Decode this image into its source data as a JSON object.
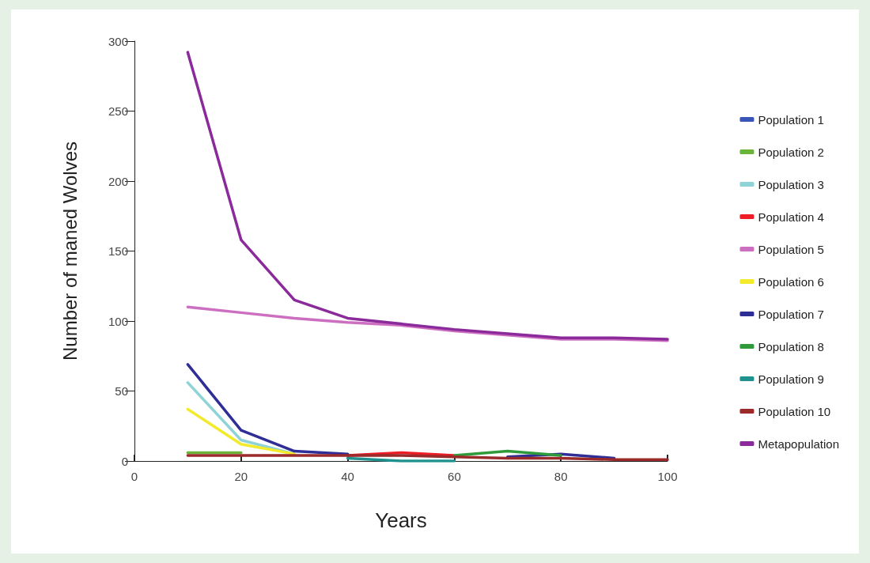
{
  "chart_data": {
    "type": "line",
    "xlabel": "Years",
    "ylabel": "Number of maned Wolves",
    "x": [
      10,
      20,
      30,
      40,
      50,
      60,
      70,
      80,
      90,
      100
    ],
    "xlim": [
      0,
      100
    ],
    "xticks": [
      0,
      20,
      40,
      60,
      80,
      100
    ],
    "ylim": [
      0,
      300
    ],
    "yticks": [
      0,
      50,
      100,
      150,
      200,
      250,
      300
    ],
    "grid": false,
    "legend": "right",
    "marker": "none",
    "line_style": "solid",
    "series": [
      {
        "name": "Population 1",
        "color": "#3a55b8",
        "values": [
          null,
          null,
          null,
          null,
          null,
          null,
          null,
          null,
          null,
          null
        ]
      },
      {
        "name": "Population 2",
        "color": "#6ab43a",
        "values": [
          6,
          6,
          null,
          null,
          null,
          null,
          null,
          null,
          null,
          null
        ]
      },
      {
        "name": "Population 3",
        "color": "#8fd3d6",
        "values": [
          56,
          15,
          5,
          null,
          null,
          null,
          null,
          null,
          null,
          null
        ]
      },
      {
        "name": "Population 4",
        "color": "#ee1c24",
        "values": [
          null,
          null,
          null,
          4,
          6,
          4,
          null,
          null,
          null,
          null
        ]
      },
      {
        "name": "Population 5",
        "color": "#cc6fc0",
        "values": [
          110,
          106,
          102,
          99,
          97,
          93,
          90,
          87,
          87,
          86
        ]
      },
      {
        "name": "Population 6",
        "color": "#f2ea2a",
        "values": [
          37,
          12,
          5,
          null,
          null,
          null,
          null,
          null,
          null,
          null
        ]
      },
      {
        "name": "Population 7",
        "color": "#2e2e96",
        "values": [
          69,
          22,
          7,
          5,
          null,
          null,
          3,
          5,
          2,
          null
        ]
      },
      {
        "name": "Population 8",
        "color": "#2f9a3a",
        "values": [
          null,
          null,
          null,
          null,
          null,
          4,
          7,
          4,
          null,
          null
        ]
      },
      {
        "name": "Population 9",
        "color": "#1f9290",
        "values": [
          null,
          null,
          null,
          2,
          0,
          0,
          null,
          null,
          null,
          null
        ]
      },
      {
        "name": "Population 10",
        "color": "#9b2a2a",
        "values": [
          4,
          4,
          4,
          4,
          4,
          3,
          2,
          2,
          1,
          1
        ]
      },
      {
        "name": "Metapopulation",
        "color": "#8b2a9a",
        "values": [
          292,
          158,
          115,
          102,
          98,
          94,
          91,
          88,
          88,
          87
        ]
      }
    ]
  }
}
